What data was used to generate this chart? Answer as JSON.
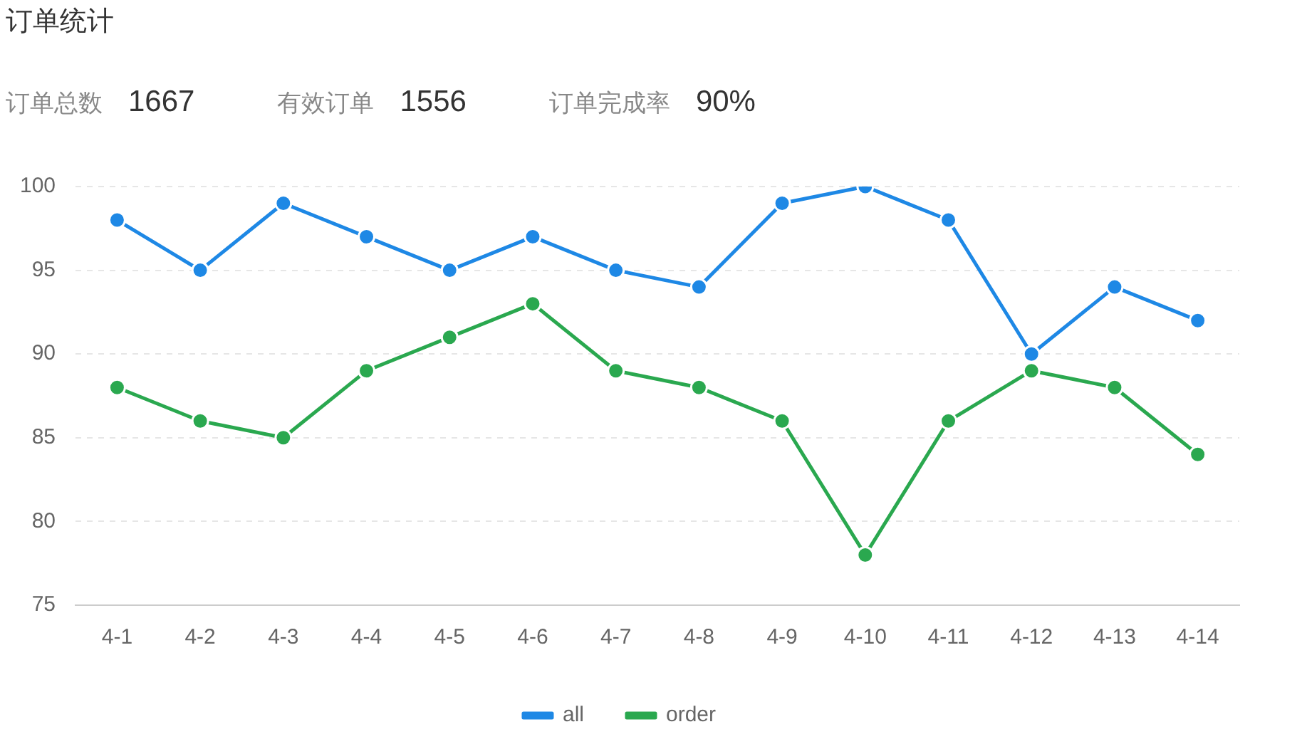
{
  "chart_data": {
    "type": "line",
    "title": "订单统计",
    "annotations": [
      "订单总数",
      "1667",
      "有效订单",
      "1556",
      "订单完成率",
      "90%"
    ],
    "categories": [
      "4-1",
      "4-2",
      "4-3",
      "4-4",
      "4-5",
      "4-6",
      "4-7",
      "4-8",
      "4-9",
      "4-10",
      "4-11",
      "4-12",
      "4-13",
      "4-14"
    ],
    "series": [
      {
        "name": "all",
        "color": "#1e88e5",
        "values": [
          98,
          95,
          99,
          97,
          95,
          97,
          95,
          94,
          99,
          100,
          98,
          90,
          94,
          92
        ]
      },
      {
        "name": "order",
        "color": "#2aa84f",
        "values": [
          88,
          86,
          85,
          89,
          91,
          93,
          89,
          88,
          86,
          78,
          86,
          89,
          88,
          84
        ]
      }
    ],
    "ylim": [
      75,
      100
    ],
    "yticks": [
      75,
      80,
      85,
      90,
      95,
      100
    ],
    "grid": "y",
    "legend": "bottom",
    "marker": "circle",
    "line_style": "solid"
  }
}
